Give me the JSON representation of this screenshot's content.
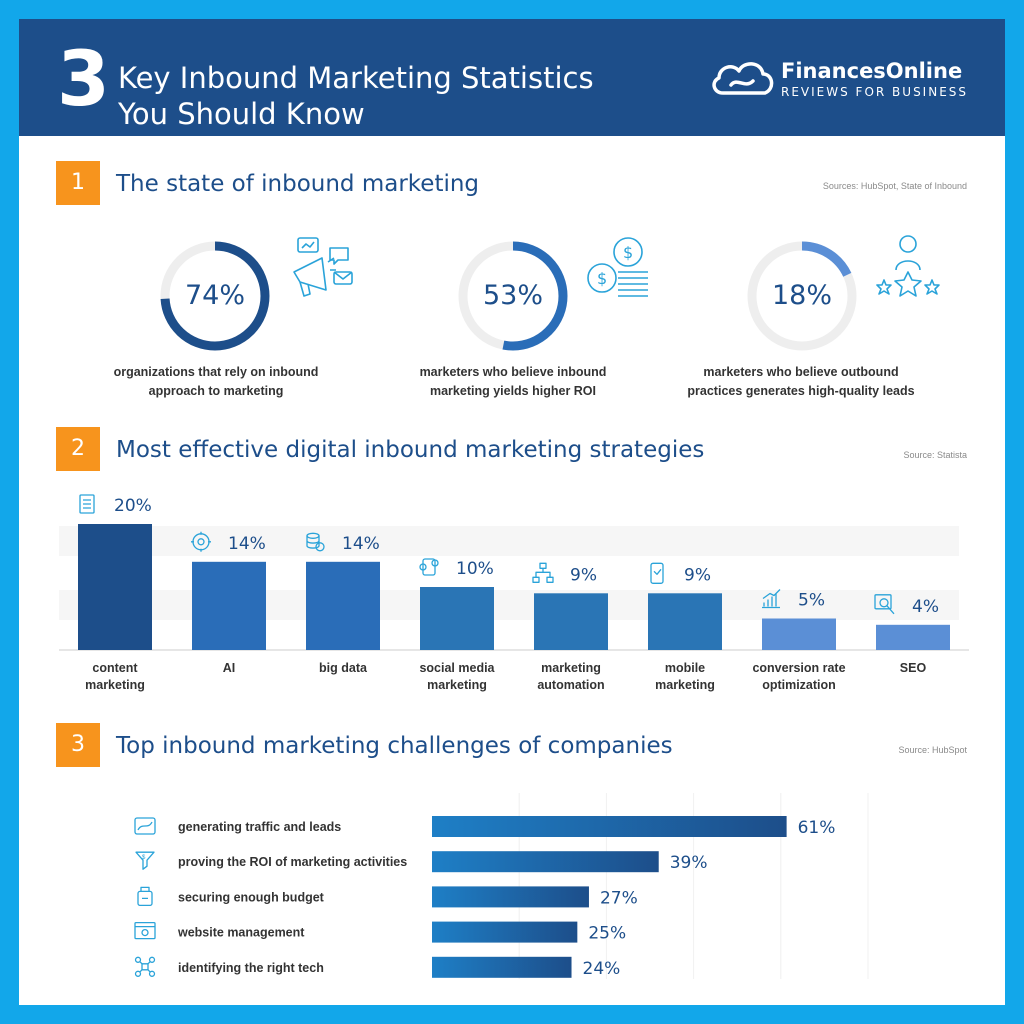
{
  "header": {
    "number": "3",
    "title_line1": "Key Inbound Marketing Statistics",
    "title_line2": "You Should Know",
    "logo_name": "FinancesOnline",
    "logo_tagline": "REVIEWS FOR BUSINESS"
  },
  "colors": {
    "header_bg": "#1d4e8a",
    "frame": "#12a7ea",
    "badge": "#f7941d",
    "dark_blue": "#1d4e8a",
    "mid_blue": "#2a6db8",
    "light_blue": "#5b8fd6",
    "ring_track": "#eeeeee"
  },
  "section1": {
    "badge": "1",
    "title": "The state of inbound marketing",
    "source": "Sources: HubSpot, State of Inbound",
    "stats": [
      {
        "value": "74%",
        "percent": 74,
        "label_line1": "organizations that rely on inbound",
        "label_line2": "approach to marketing",
        "icon": "megaphone-icon"
      },
      {
        "value": "53%",
        "percent": 53,
        "label_line1": "marketers who believe inbound",
        "label_line2": "marketing yields higher ROI",
        "icon": "coins-icon"
      },
      {
        "value": "18%",
        "percent": 18,
        "label_line1": "marketers who believe outbound",
        "label_line2": "practices generates high-quality leads",
        "icon": "star-rating-icon"
      }
    ]
  },
  "section2": {
    "badge": "2",
    "title": "Most effective digital inbound marketing strategies",
    "source": "Source: Statista"
  },
  "section3": {
    "badge": "3",
    "title": "Top inbound marketing challenges of companies",
    "source": "Source: HubSpot"
  },
  "chart_data": [
    {
      "type": "bar",
      "categories": [
        [
          "content",
          "marketing"
        ],
        [
          "AI"
        ],
        [
          "big data"
        ],
        [
          "social media",
          "marketing"
        ],
        [
          "marketing",
          "automation"
        ],
        [
          "mobile",
          "marketing"
        ],
        [
          "conversion rate",
          "optimization"
        ],
        [
          "SEO"
        ]
      ],
      "values": [
        20,
        14,
        14,
        10,
        9,
        9,
        5,
        4
      ],
      "value_labels": [
        "20%",
        "14%",
        "14%",
        "10%",
        "9%",
        "9%",
        "5%",
        "4%"
      ],
      "icons": [
        "document-icon",
        "brain-gear-icon",
        "database-gear-icon",
        "social-media-icon",
        "workflow-icon",
        "mobile-icon",
        "growth-chart-icon",
        "seo-search-icon"
      ],
      "ylim": [
        0,
        20
      ],
      "title": "",
      "xlabel": "",
      "ylabel": ""
    },
    {
      "type": "bar",
      "orientation": "horizontal",
      "categories": [
        "generating traffic and leads",
        "proving the ROI of marketing activities",
        "securing enough budget",
        "website management",
        "identifying the right tech"
      ],
      "values": [
        61,
        39,
        27,
        25,
        24
      ],
      "value_labels": [
        "61%",
        "39%",
        "27%",
        "25%",
        "24%"
      ],
      "icons": [
        "traffic-icon",
        "roi-funnel-icon",
        "budget-icon",
        "website-gear-icon",
        "tech-network-icon"
      ],
      "xlim": [
        0,
        75
      ],
      "xticks": [
        "0%",
        "15%",
        "30%",
        "45%",
        "60%",
        "75%"
      ],
      "grid": true,
      "title": "",
      "xlabel": "",
      "ylabel": ""
    }
  ]
}
